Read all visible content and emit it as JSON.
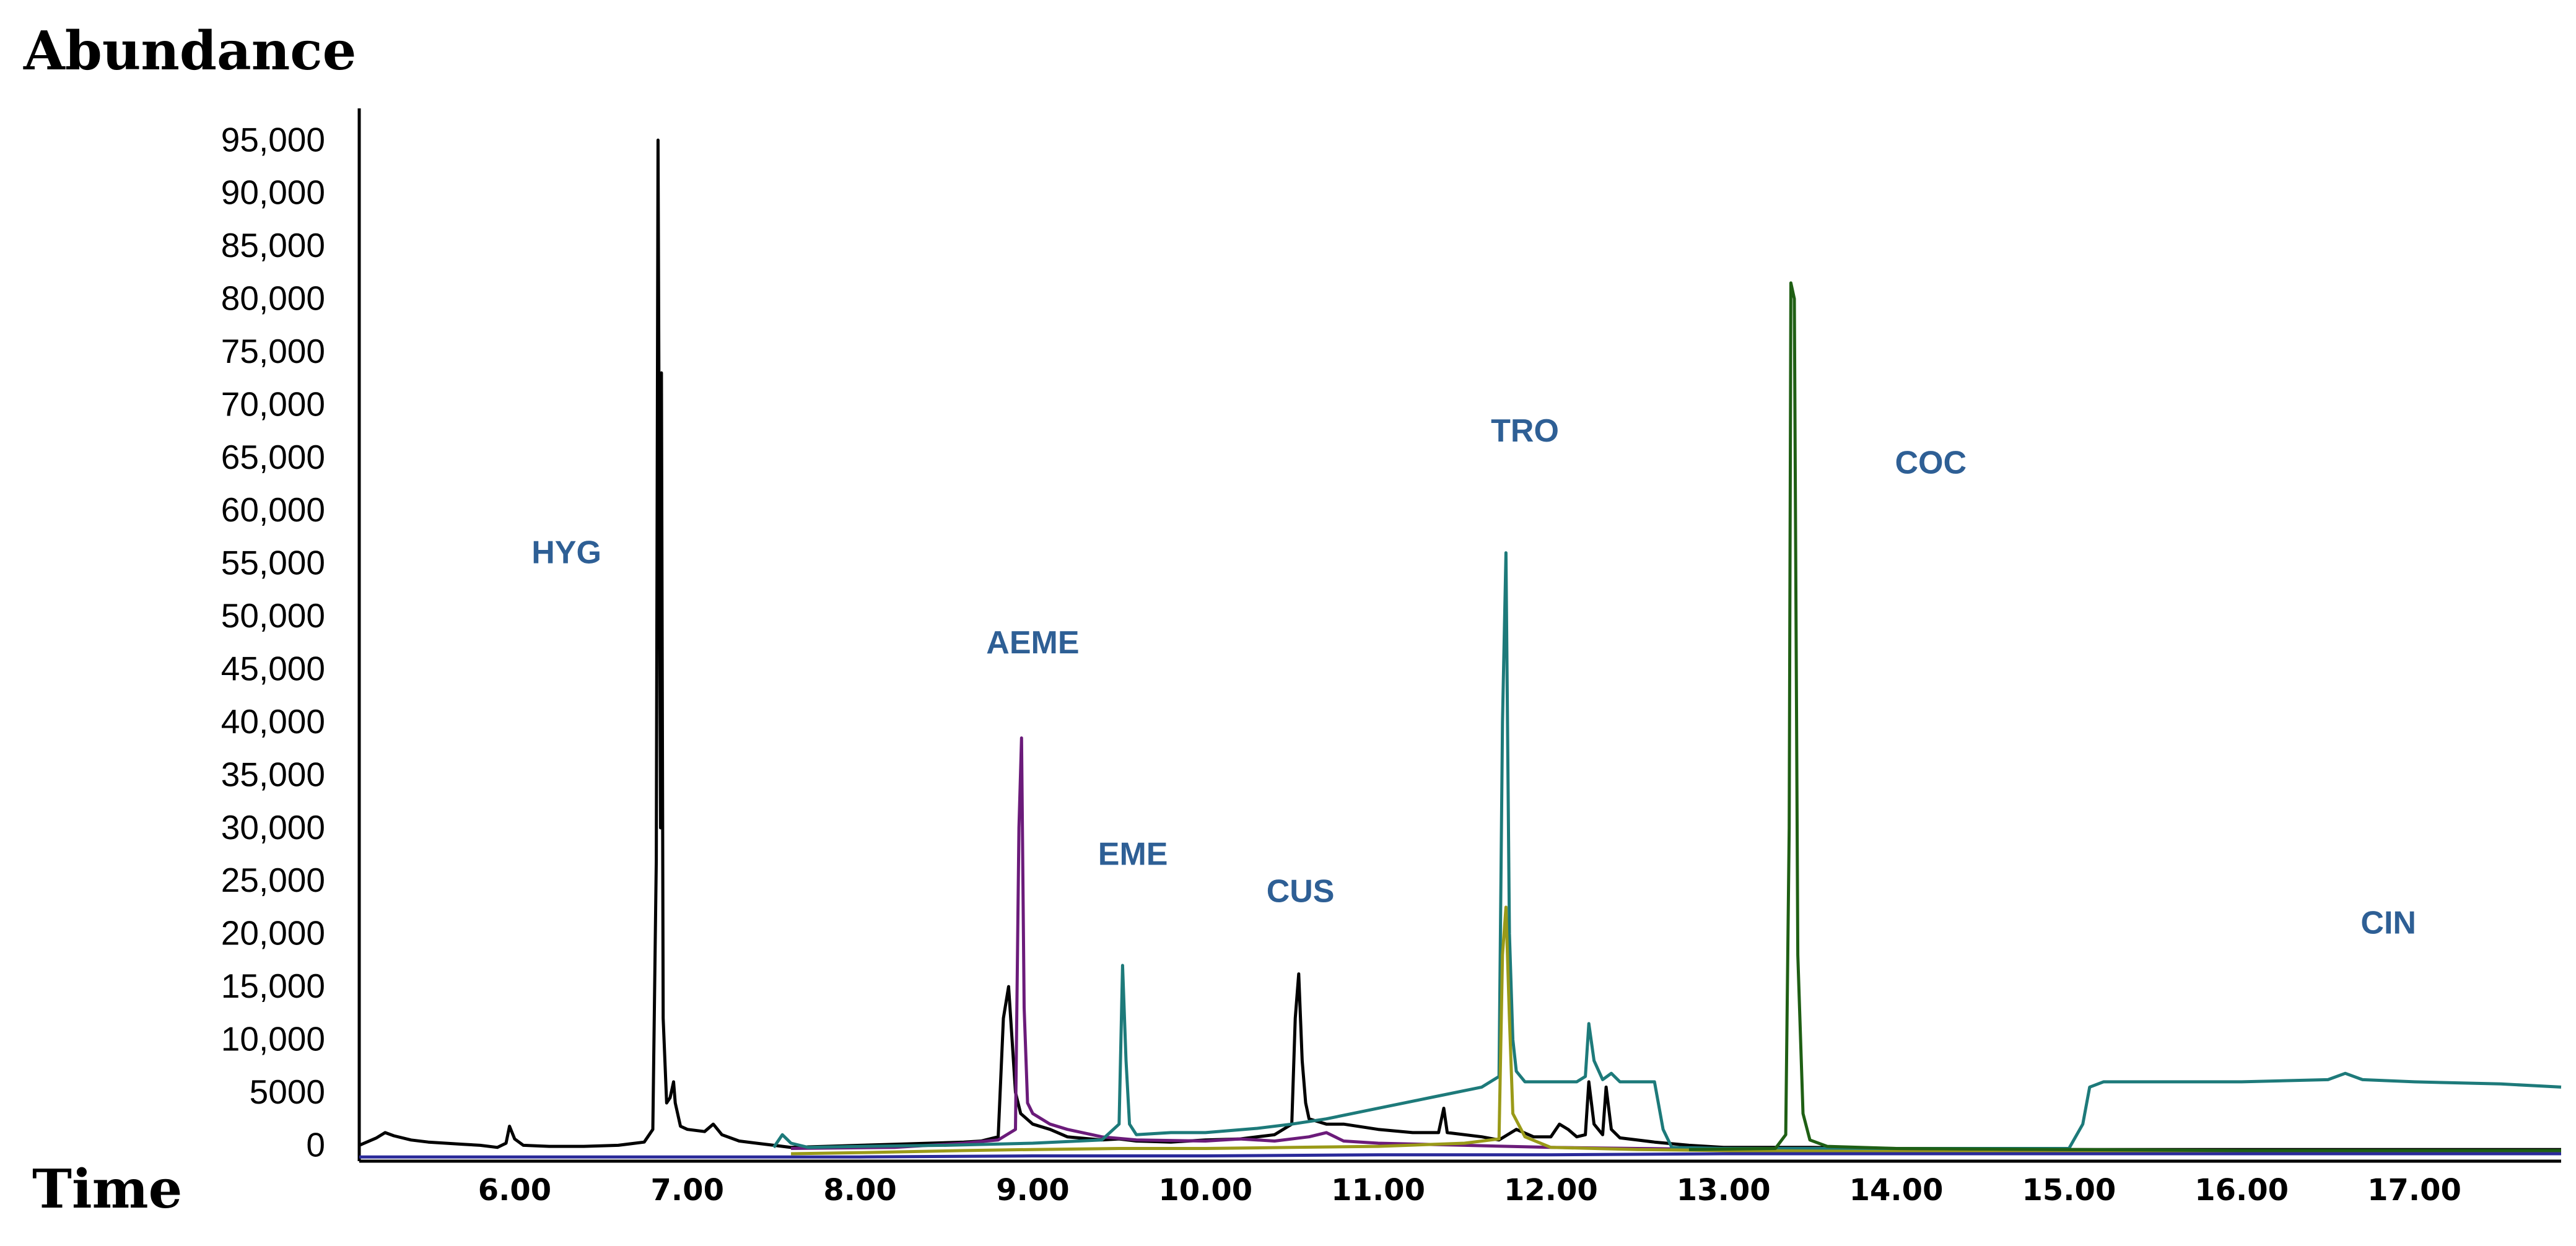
{
  "chart_data": {
    "type": "line",
    "title": "",
    "ylabel": "Abundance",
    "xlabel": "Time",
    "xlim": [
      5.1,
      17.85
    ],
    "ylim": [
      -1500,
      98000
    ],
    "yticks": [
      0,
      5000,
      10000,
      15000,
      20000,
      25000,
      30000,
      35000,
      40000,
      45000,
      50000,
      55000,
      60000,
      65000,
      70000,
      75000,
      80000,
      85000,
      90000,
      95000
    ],
    "ytick_labels": [
      "0",
      "5000",
      "10,000",
      "15,000",
      "20,000",
      "25,000",
      "30,000",
      "35,000",
      "40,000",
      "45,000",
      "50,000",
      "55,000",
      "60,000",
      "65,000",
      "70,000",
      "75,000",
      "80,000",
      "85,000",
      "90,000",
      "95,000"
    ],
    "xticks": [
      6.0,
      7.0,
      8.0,
      9.0,
      10.0,
      11.0,
      12.0,
      13.0,
      14.0,
      15.0,
      16.0,
      17.0
    ],
    "xtick_labels": [
      "6.00",
      "7.00",
      "8.00",
      "9.00",
      "10.00",
      "11.00",
      "12.00",
      "13.00",
      "14.00",
      "15.00",
      "16.00",
      "17.00"
    ],
    "grid": false,
    "colors": {
      "axis": "#000000",
      "label_text": "#2e5f95"
    },
    "annotations": [
      {
        "text": "HYG",
        "x": 6.3,
        "y": 55000
      },
      {
        "text": "AEME",
        "x": 9.0,
        "y": 46500
      },
      {
        "text": "EME",
        "x": 9.58,
        "y": 26500
      },
      {
        "text": "CUS",
        "x": 10.55,
        "y": 23000
      },
      {
        "text": "TRO",
        "x": 11.85,
        "y": 66500
      },
      {
        "text": "COC",
        "x": 14.2,
        "y": 63500
      },
      {
        "text": "CIN",
        "x": 16.85,
        "y": 20000
      }
    ],
    "series": [
      {
        "color": "#000000",
        "points": [
          [
            5.1,
            0
          ],
          [
            5.2,
            700
          ],
          [
            5.25,
            1200
          ],
          [
            5.3,
            900
          ],
          [
            5.4,
            500
          ],
          [
            5.5,
            300
          ],
          [
            5.6,
            200
          ],
          [
            5.7,
            100
          ],
          [
            5.8,
            0
          ],
          [
            5.9,
            -200
          ],
          [
            5.95,
            200
          ],
          [
            5.97,
            1800
          ],
          [
            6.0,
            600
          ],
          [
            6.05,
            0
          ],
          [
            6.2,
            -100
          ],
          [
            6.4,
            -100
          ],
          [
            6.6,
            0
          ],
          [
            6.75,
            300
          ],
          [
            6.8,
            1500
          ],
          [
            6.82,
            27000
          ],
          [
            6.83,
            95000
          ],
          [
            6.845,
            30000
          ],
          [
            6.85,
            73000
          ],
          [
            6.86,
            12000
          ],
          [
            6.88,
            4000
          ],
          [
            6.9,
            4500
          ],
          [
            6.92,
            6000
          ],
          [
            6.93,
            4000
          ],
          [
            6.96,
            1800
          ],
          [
            7.0,
            1500
          ],
          [
            7.1,
            1300
          ],
          [
            7.15,
            2000
          ],
          [
            7.2,
            1000
          ],
          [
            7.3,
            400
          ],
          [
            7.4,
            200
          ],
          [
            7.5,
            0
          ],
          [
            7.6,
            -200
          ],
          [
            7.8,
            -100
          ],
          [
            8.0,
            0
          ],
          [
            8.2,
            100
          ],
          [
            8.4,
            200
          ],
          [
            8.6,
            300
          ],
          [
            8.7,
            400
          ],
          [
            8.8,
            800
          ],
          [
            8.83,
            12000
          ],
          [
            8.86,
            15000
          ],
          [
            8.88,
            10000
          ],
          [
            8.9,
            5000
          ],
          [
            8.93,
            3000
          ],
          [
            9.0,
            2000
          ],
          [
            9.1,
            1500
          ],
          [
            9.2,
            800
          ],
          [
            9.4,
            500
          ],
          [
            9.5,
            600
          ],
          [
            9.6,
            400
          ],
          [
            9.8,
            300
          ],
          [
            10.0,
            500
          ],
          [
            10.2,
            600
          ],
          [
            10.4,
            1000
          ],
          [
            10.5,
            2000
          ],
          [
            10.52,
            12000
          ],
          [
            10.54,
            16200
          ],
          [
            10.56,
            8000
          ],
          [
            10.58,
            4000
          ],
          [
            10.6,
            2500
          ],
          [
            10.7,
            2000
          ],
          [
            10.8,
            2000
          ],
          [
            11.0,
            1500
          ],
          [
            11.2,
            1200
          ],
          [
            11.35,
            1200
          ],
          [
            11.38,
            3500
          ],
          [
            11.4,
            1200
          ],
          [
            11.6,
            800
          ],
          [
            11.7,
            500
          ],
          [
            11.8,
            1500
          ],
          [
            11.9,
            800
          ],
          [
            12.0,
            800
          ],
          [
            12.05,
            2000
          ],
          [
            12.1,
            1500
          ],
          [
            12.15,
            800
          ],
          [
            12.2,
            1000
          ],
          [
            12.22,
            6000
          ],
          [
            12.25,
            2000
          ],
          [
            12.3,
            1000
          ],
          [
            12.32,
            5500
          ],
          [
            12.35,
            1500
          ],
          [
            12.4,
            700
          ],
          [
            12.6,
            300
          ],
          [
            12.8,
            0
          ],
          [
            13.0,
            -200
          ],
          [
            13.5,
            -200
          ],
          [
            14.0,
            -300
          ],
          [
            14.5,
            -300
          ],
          [
            15.0,
            -400
          ],
          [
            15.5,
            -400
          ],
          [
            16.0,
            -400
          ],
          [
            17.0,
            -400
          ],
          [
            17.85,
            -400
          ]
        ]
      },
      {
        "color": "#6b1b7a",
        "points": [
          [
            7.6,
            -300
          ],
          [
            8.2,
            -200
          ],
          [
            8.6,
            200
          ],
          [
            8.8,
            500
          ],
          [
            8.9,
            1500
          ],
          [
            8.92,
            30000
          ],
          [
            8.935,
            38500
          ],
          [
            8.95,
            13000
          ],
          [
            8.97,
            4000
          ],
          [
            9.0,
            3000
          ],
          [
            9.1,
            2000
          ],
          [
            9.2,
            1500
          ],
          [
            9.4,
            800
          ],
          [
            9.6,
            500
          ],
          [
            10.0,
            400
          ],
          [
            10.2,
            600
          ],
          [
            10.4,
            400
          ],
          [
            10.6,
            800
          ],
          [
            10.7,
            1200
          ],
          [
            10.8,
            400
          ],
          [
            11.0,
            200
          ],
          [
            11.5,
            0
          ],
          [
            12.0,
            -200
          ],
          [
            12.5,
            -300
          ],
          [
            13.0,
            -400
          ],
          [
            14.0,
            -500
          ],
          [
            15.0,
            -600
          ],
          [
            17.85,
            -600
          ]
        ]
      },
      {
        "color": "#1d7a7a",
        "points": [
          [
            7.5,
            -200
          ],
          [
            7.55,
            1000
          ],
          [
            7.6,
            200
          ],
          [
            7.7,
            -200
          ],
          [
            8.0,
            -100
          ],
          [
            8.5,
            0
          ],
          [
            9.0,
            200
          ],
          [
            9.4,
            500
          ],
          [
            9.5,
            2000
          ],
          [
            9.52,
            17000
          ],
          [
            9.54,
            8000
          ],
          [
            9.56,
            2000
          ],
          [
            9.6,
            1000
          ],
          [
            9.8,
            1200
          ],
          [
            10.0,
            1200
          ],
          [
            10.3,
            1600
          ],
          [
            10.5,
            2000
          ],
          [
            10.7,
            2500
          ],
          [
            11.0,
            3500
          ],
          [
            11.3,
            4500
          ],
          [
            11.6,
            5500
          ],
          [
            11.7,
            6500
          ],
          [
            11.72,
            40000
          ],
          [
            11.74,
            56000
          ],
          [
            11.76,
            20000
          ],
          [
            11.78,
            10000
          ],
          [
            11.8,
            7000
          ],
          [
            11.85,
            6000
          ],
          [
            12.0,
            6000
          ],
          [
            12.15,
            6000
          ],
          [
            12.2,
            6500
          ],
          [
            12.22,
            11500
          ],
          [
            12.25,
            8000
          ],
          [
            12.3,
            6200
          ],
          [
            12.35,
            6800
          ],
          [
            12.4,
            6000
          ],
          [
            12.6,
            6000
          ],
          [
            12.65,
            1500
          ],
          [
            12.7,
            -200
          ],
          [
            13.0,
            -300
          ],
          [
            14.0,
            -300
          ],
          [
            15.0,
            -300
          ],
          [
            15.08,
            2000
          ],
          [
            15.12,
            5500
          ],
          [
            15.2,
            6000
          ],
          [
            16.0,
            6000
          ],
          [
            16.5,
            6200
          ],
          [
            16.6,
            6800
          ],
          [
            16.7,
            6200
          ],
          [
            17.0,
            6000
          ],
          [
            17.5,
            5800
          ],
          [
            17.85,
            5500
          ]
        ]
      },
      {
        "color": "#9a9a18",
        "points": [
          [
            7.6,
            -800
          ],
          [
            8.0,
            -700
          ],
          [
            8.6,
            -500
          ],
          [
            9.0,
            -400
          ],
          [
            9.5,
            -300
          ],
          [
            10.0,
            -300
          ],
          [
            10.5,
            -200
          ],
          [
            11.0,
            -100
          ],
          [
            11.5,
            200
          ],
          [
            11.7,
            600
          ],
          [
            11.72,
            18000
          ],
          [
            11.74,
            22500
          ],
          [
            11.76,
            12000
          ],
          [
            11.78,
            3000
          ],
          [
            11.85,
            800
          ],
          [
            12.0,
            -200
          ],
          [
            12.5,
            -400
          ],
          [
            13.0,
            -500
          ],
          [
            14.0,
            -600
          ],
          [
            15.0,
            -700
          ],
          [
            16.0,
            -700
          ],
          [
            17.85,
            -700
          ]
        ]
      },
      {
        "color": "#1f5f14",
        "points": [
          [
            12.8,
            -400
          ],
          [
            13.3,
            -300
          ],
          [
            13.36,
            1000
          ],
          [
            13.38,
            30000
          ],
          [
            13.39,
            81500
          ],
          [
            13.41,
            80000
          ],
          [
            13.43,
            18000
          ],
          [
            13.46,
            3000
          ],
          [
            13.5,
            500
          ],
          [
            13.6,
            -100
          ],
          [
            14.0,
            -300
          ],
          [
            15.0,
            -400
          ],
          [
            16.0,
            -500
          ],
          [
            17.85,
            -500
          ]
        ]
      },
      {
        "color": "#2a2a9a",
        "points": [
          [
            5.1,
            -1100
          ],
          [
            6.0,
            -1100
          ],
          [
            7.0,
            -1100
          ],
          [
            8.0,
            -1100
          ],
          [
            9.0,
            -1000
          ],
          [
            10.0,
            -1000
          ],
          [
            11.0,
            -900
          ],
          [
            12.0,
            -900
          ],
          [
            13.0,
            -800
          ],
          [
            14.0,
            -800
          ],
          [
            15.0,
            -800
          ],
          [
            16.0,
            -800
          ],
          [
            17.0,
            -800
          ],
          [
            17.85,
            -800
          ]
        ]
      }
    ]
  }
}
